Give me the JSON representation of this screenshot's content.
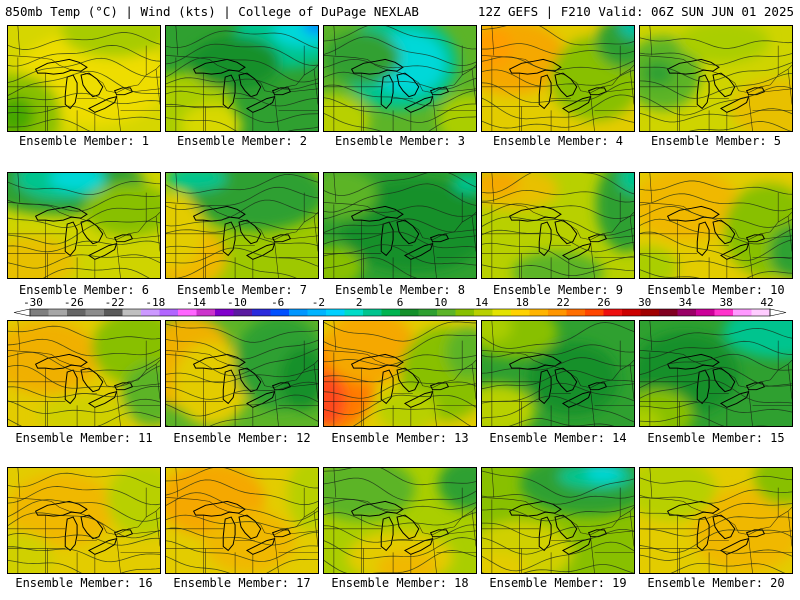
{
  "header": {
    "left": "850mb Temp (°C) | Wind (kts) | College of DuPage NEXLAB",
    "right": "12Z GEFS | F210 Valid: 06Z SUN JUN 01 2025"
  },
  "panels": [
    {
      "label": "Ensemble Member: 1",
      "base": "#d6d600",
      "patches": [
        [
          "#eedd00",
          0.55,
          0.5,
          0.5,
          0.45
        ],
        [
          "#88c000",
          0.05,
          0.85,
          0.3,
          0.4
        ],
        [
          "#46a800",
          0.05,
          0.85,
          0.12,
          0.18
        ],
        [
          "#a8cc00",
          0.7,
          0.05,
          0.35,
          0.25
        ]
      ]
    },
    {
      "label": "Ensemble Member: 2",
      "base": "#2fa030",
      "patches": [
        [
          "#00c48e",
          0.8,
          0.1,
          0.35,
          0.3
        ],
        [
          "#00d8d8",
          0.9,
          0.05,
          0.2,
          0.15
        ],
        [
          "#008cff",
          1,
          0,
          0.1,
          0.08
        ],
        [
          "#aace00",
          0.1,
          0.8,
          0.35,
          0.35
        ],
        [
          "#d8d800",
          0.3,
          0.95,
          0.2,
          0.2
        ],
        [
          "#14902a",
          0.45,
          0.35,
          0.3,
          0.25
        ]
      ]
    },
    {
      "label": "Ensemble Member: 3",
      "base": "#5cb428",
      "patches": [
        [
          "#00c48e",
          0.5,
          0.35,
          0.38,
          0.45
        ],
        [
          "#00d8d8",
          0.55,
          0.35,
          0.25,
          0.3
        ],
        [
          "#30a030",
          0.25,
          0.3,
          0.25,
          0.25
        ],
        [
          "#b8d000",
          0.05,
          0.9,
          0.25,
          0.25
        ],
        [
          "#aace00",
          0.95,
          0.9,
          0.2,
          0.25
        ]
      ]
    },
    {
      "label": "Ensemble Member: 4",
      "base": "#e3cc00",
      "patches": [
        [
          "#f5a800",
          0.2,
          0.3,
          0.35,
          0.35
        ],
        [
          "#ff9e00",
          0.05,
          0.2,
          0.15,
          0.2
        ],
        [
          "#88c000",
          0.75,
          0.5,
          0.3,
          0.4
        ],
        [
          "#2fa030",
          0.95,
          0.15,
          0.2,
          0.25
        ],
        [
          "#00c0a0",
          1,
          0,
          0.1,
          0.12
        ]
      ]
    },
    {
      "label": "Ensemble Member: 5",
      "base": "#cfd400",
      "patches": [
        [
          "#5cb428",
          0.15,
          0.45,
          0.25,
          0.35
        ],
        [
          "#2fa030",
          0.12,
          0.45,
          0.1,
          0.12
        ],
        [
          "#e8c000",
          0.9,
          0.8,
          0.3,
          0.3
        ],
        [
          "#aace00",
          0.55,
          0.15,
          0.3,
          0.2
        ]
      ]
    },
    {
      "label": "Ensemble Member: 6",
      "base": "#cfd400",
      "patches": [
        [
          "#2fa030",
          0.35,
          0.1,
          0.55,
          0.3
        ],
        [
          "#00c48e",
          0.35,
          0.05,
          0.3,
          0.2
        ],
        [
          "#00d8d8",
          0.45,
          0.05,
          0.18,
          0.12
        ],
        [
          "#e8c000",
          0.15,
          0.85,
          0.3,
          0.25
        ],
        [
          "#88c000",
          0.8,
          0.35,
          0.3,
          0.25
        ]
      ]
    },
    {
      "label": "Ensemble Member: 7",
      "base": "#9ec800",
      "patches": [
        [
          "#2fa030",
          0.6,
          0.2,
          0.45,
          0.35
        ],
        [
          "#00c48e",
          0.2,
          0.05,
          0.2,
          0.12
        ],
        [
          "#f0b800",
          0.15,
          0.8,
          0.25,
          0.3
        ],
        [
          "#e3cc00",
          0.05,
          0.55,
          0.2,
          0.35
        ]
      ]
    },
    {
      "label": "Ensemble Member: 8",
      "base": "#2fa030",
      "patches": [
        [
          "#14902a",
          0.6,
          0.5,
          0.5,
          0.45
        ],
        [
          "#5cb428",
          0.1,
          0.2,
          0.25,
          0.25
        ],
        [
          "#88c000",
          0.05,
          0.9,
          0.2,
          0.2
        ],
        [
          "#00c48e",
          0.95,
          0.1,
          0.1,
          0.1
        ]
      ]
    },
    {
      "label": "Ensemble Member: 9",
      "base": "#b8d000",
      "patches": [
        [
          "#e8c000",
          0.2,
          0.15,
          0.3,
          0.2
        ],
        [
          "#f5a800",
          0.1,
          0.1,
          0.15,
          0.12
        ],
        [
          "#2fa030",
          0.95,
          0.3,
          0.2,
          0.45
        ],
        [
          "#00c48e",
          1,
          0.05,
          0.1,
          0.15
        ],
        [
          "#5cb428",
          0.5,
          0.95,
          0.3,
          0.2
        ]
      ]
    },
    {
      "label": "Ensemble Member: 10",
      "base": "#e3cc00",
      "patches": [
        [
          "#f0b800",
          0.3,
          0.3,
          0.35,
          0.35
        ],
        [
          "#88c000",
          0.85,
          0.55,
          0.3,
          0.45
        ],
        [
          "#2fa030",
          1,
          0.75,
          0.15,
          0.25
        ],
        [
          "#aace00",
          0.05,
          0.9,
          0.2,
          0.2
        ]
      ]
    },
    {
      "label": "Ensemble Member: 11",
      "base": "#e3cc00",
      "patches": [
        [
          "#f0b000",
          0.25,
          0.35,
          0.35,
          0.35
        ],
        [
          "#88c000",
          0.85,
          0.25,
          0.3,
          0.35
        ],
        [
          "#5cb428",
          0.95,
          0.7,
          0.2,
          0.3
        ],
        [
          "#d0d000",
          0.5,
          0.9,
          0.3,
          0.2
        ]
      ]
    },
    {
      "label": "Ensemble Member: 12",
      "base": "#5cb428",
      "patches": [
        [
          "#f0b000",
          0.15,
          0.4,
          0.3,
          0.45
        ],
        [
          "#e3cc00",
          0.3,
          0.6,
          0.25,
          0.4
        ],
        [
          "#2fa030",
          0.75,
          0.4,
          0.3,
          0.45
        ],
        [
          "#14902a",
          0.9,
          0.55,
          0.15,
          0.3
        ]
      ]
    },
    {
      "label": "Ensemble Member: 13",
      "base": "#e3cc00",
      "patches": [
        [
          "#ff7a00",
          0.08,
          0.6,
          0.25,
          0.45
        ],
        [
          "#ff4a1a",
          0.02,
          0.75,
          0.12,
          0.25
        ],
        [
          "#f5a800",
          0.3,
          0.25,
          0.3,
          0.35
        ],
        [
          "#88c000",
          0.8,
          0.5,
          0.3,
          0.45
        ],
        [
          "#5cb428",
          0.95,
          0.3,
          0.15,
          0.25
        ],
        [
          "#b8d000",
          0.55,
          0.85,
          0.2,
          0.2
        ]
      ]
    },
    {
      "label": "Ensemble Member: 14",
      "base": "#2fa030",
      "patches": [
        [
          "#88c000",
          0.2,
          0.1,
          0.3,
          0.25
        ],
        [
          "#aace00",
          0.05,
          0.05,
          0.15,
          0.15
        ],
        [
          "#b8d000",
          0.1,
          0.85,
          0.25,
          0.25
        ],
        [
          "#14902a",
          0.6,
          0.55,
          0.3,
          0.35
        ]
      ]
    },
    {
      "label": "Ensemble Member: 15",
      "base": "#2fa030",
      "patches": [
        [
          "#00c48e",
          0.9,
          0.1,
          0.35,
          0.25
        ],
        [
          "#14902a",
          0.3,
          0.5,
          0.35,
          0.4
        ],
        [
          "#88c000",
          0.1,
          0.9,
          0.25,
          0.25
        ],
        [
          "#aace00",
          0.02,
          0.98,
          0.12,
          0.15
        ]
      ]
    },
    {
      "label": "Ensemble Member: 16",
      "base": "#e3cc00",
      "patches": [
        [
          "#f0b800",
          0.35,
          0.4,
          0.35,
          0.35
        ],
        [
          "#b8d000",
          0.9,
          0.3,
          0.25,
          0.35
        ],
        [
          "#d0d000",
          0.05,
          0.85,
          0.25,
          0.25
        ]
      ]
    },
    {
      "label": "Ensemble Member: 17",
      "base": "#e3cc00",
      "patches": [
        [
          "#f5a800",
          0.3,
          0.3,
          0.35,
          0.35
        ],
        [
          "#f0b800",
          0.55,
          0.7,
          0.3,
          0.3
        ],
        [
          "#b8d000",
          0.95,
          0.25,
          0.15,
          0.35
        ]
      ]
    },
    {
      "label": "Ensemble Member: 18",
      "base": "#aace00",
      "patches": [
        [
          "#5cb428",
          0.25,
          0.2,
          0.35,
          0.3
        ],
        [
          "#2fa030",
          0.95,
          0.15,
          0.2,
          0.25
        ],
        [
          "#e3cc00",
          0.5,
          0.85,
          0.35,
          0.25
        ],
        [
          "#f0b800",
          0.55,
          0.95,
          0.2,
          0.15
        ]
      ]
    },
    {
      "label": "Ensemble Member: 19",
      "base": "#88c000",
      "patches": [
        [
          "#2fa030",
          0.7,
          0.15,
          0.45,
          0.3
        ],
        [
          "#00c48e",
          0.75,
          0.08,
          0.25,
          0.12
        ],
        [
          "#00d8d8",
          0.8,
          0.05,
          0.12,
          0.08
        ],
        [
          "#d0d000",
          0.25,
          0.8,
          0.35,
          0.3
        ],
        [
          "#e3cc00",
          0.1,
          0.95,
          0.2,
          0.15
        ]
      ]
    },
    {
      "label": "Ensemble Member: 20",
      "base": "#e3cc00",
      "patches": [
        [
          "#f0b800",
          0.7,
          0.6,
          0.35,
          0.4
        ],
        [
          "#b8d000",
          0.2,
          0.2,
          0.3,
          0.3
        ],
        [
          "#88c000",
          0.95,
          0.1,
          0.2,
          0.25
        ]
      ]
    }
  ],
  "colorbar": {
    "ticks": [
      "-30",
      "-26",
      "-22",
      "-18",
      "-14",
      "-10",
      "-6",
      "-2",
      "2",
      "6",
      "10",
      "14",
      "18",
      "22",
      "26",
      "30",
      "34",
      "38",
      "42"
    ],
    "colors": [
      "#7f7f7f",
      "#a6a6a6",
      "#666666",
      "#8c8c8c",
      "#5a5a5a",
      "#bfbfbf",
      "#cc99ff",
      "#b266ff",
      "#ff66ff",
      "#cc33cc",
      "#8000cc",
      "#5a1aa0",
      "#2a2adc",
      "#0050ff",
      "#0096ff",
      "#00b4ff",
      "#00d0ff",
      "#00dcc8",
      "#00c48e",
      "#00b450",
      "#14902a",
      "#2fa030",
      "#5cb428",
      "#88c000",
      "#b8d000",
      "#e3e300",
      "#ffd200",
      "#ffb400",
      "#ff9600",
      "#ff6e00",
      "#ff4600",
      "#ee1010",
      "#cc0000",
      "#a00000",
      "#800020",
      "#990066",
      "#cc0099",
      "#ff33cc",
      "#ff99ff",
      "#ffccff"
    ]
  }
}
